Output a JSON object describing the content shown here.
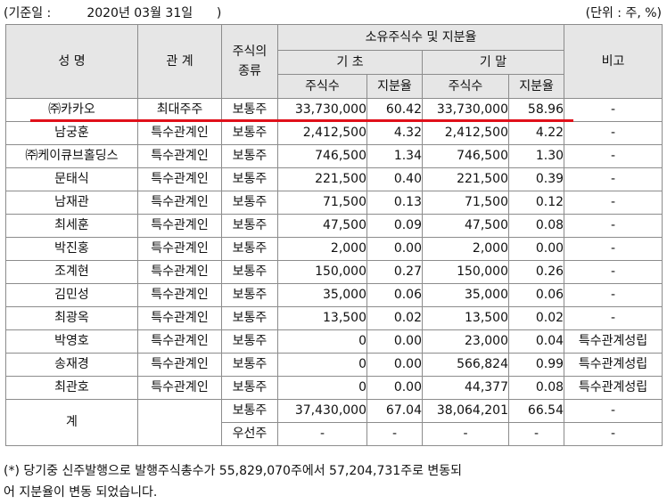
{
  "header": {
    "base_date": "(기준일 :         2020년 03월 31일      )",
    "unit": "(단위 : 주, %)"
  },
  "table": {
    "col_name": "성 명",
    "col_relation": "관 계",
    "col_stock_type": "주식의\n종류",
    "col_ownership": "소유주식수 및 지분율",
    "col_begin": "기 초",
    "col_end": "기 말",
    "col_note": "비고",
    "col_shares_begin": "주식수",
    "col_ratio_begin": "지분율",
    "col_shares_end": "주식수",
    "col_ratio_end": "지분율",
    "rows": [
      {
        "name": "㈜카카오",
        "relation": "최대주주",
        "type": "보통주",
        "shares_begin": "33,730,000",
        "ratio_begin": "60.42",
        "shares_end": "33,730,000",
        "ratio_end": "58.96",
        "note": "-"
      },
      {
        "name": "남궁훈",
        "relation": "특수관계인",
        "type": "보통주",
        "shares_begin": "2,412,500",
        "ratio_begin": "4.32",
        "shares_end": "2,412,500",
        "ratio_end": "4.22",
        "note": "-"
      },
      {
        "name": "㈜케이큐브홀딩스",
        "relation": "특수관계인",
        "type": "보통주",
        "shares_begin": "746,500",
        "ratio_begin": "1.34",
        "shares_end": "746,500",
        "ratio_end": "1.30",
        "note": "-"
      },
      {
        "name": "문태식",
        "relation": "특수관계인",
        "type": "보통주",
        "shares_begin": "221,500",
        "ratio_begin": "0.40",
        "shares_end": "221,500",
        "ratio_end": "0.39",
        "note": "-"
      },
      {
        "name": "남재관",
        "relation": "특수관계인",
        "type": "보통주",
        "shares_begin": "71,500",
        "ratio_begin": "0.13",
        "shares_end": "71,500",
        "ratio_end": "0.12",
        "note": "-"
      },
      {
        "name": "최세훈",
        "relation": "특수관계인",
        "type": "보통주",
        "shares_begin": "47,500",
        "ratio_begin": "0.09",
        "shares_end": "47,500",
        "ratio_end": "0.08",
        "note": "-"
      },
      {
        "name": "박진홍",
        "relation": "특수관계인",
        "type": "보통주",
        "shares_begin": "2,000",
        "ratio_begin": "0.00",
        "shares_end": "2,000",
        "ratio_end": "0.00",
        "note": "-"
      },
      {
        "name": "조계현",
        "relation": "특수관계인",
        "type": "보통주",
        "shares_begin": "150,000",
        "ratio_begin": "0.27",
        "shares_end": "150,000",
        "ratio_end": "0.26",
        "note": "-"
      },
      {
        "name": "김민성",
        "relation": "특수관계인",
        "type": "보통주",
        "shares_begin": "35,000",
        "ratio_begin": "0.06",
        "shares_end": "35,000",
        "ratio_end": "0.06",
        "note": "-"
      },
      {
        "name": "최광옥",
        "relation": "특수관계인",
        "type": "보통주",
        "shares_begin": "13,500",
        "ratio_begin": "0.02",
        "shares_end": "13,500",
        "ratio_end": "0.02",
        "note": "-"
      },
      {
        "name": "박영호",
        "relation": "특수관계인",
        "type": "보통주",
        "shares_begin": "0",
        "ratio_begin": "0.00",
        "shares_end": "23,000",
        "ratio_end": "0.04",
        "note": "특수관계성립"
      },
      {
        "name": "송재경",
        "relation": "특수관계인",
        "type": "보통주",
        "shares_begin": "0",
        "ratio_begin": "0.00",
        "shares_end": "566,824",
        "ratio_end": "0.99",
        "note": "특수관계성립"
      },
      {
        "name": "최관호",
        "relation": "특수관계인",
        "type": "보통주",
        "shares_begin": "0",
        "ratio_begin": "0.00",
        "shares_end": "44,377",
        "ratio_end": "0.08",
        "note": "특수관계성립"
      }
    ],
    "total": {
      "label": "계",
      "common_type": "보통주",
      "common_shares_begin": "37,430,000",
      "common_ratio_begin": "67.04",
      "common_shares_end": "38,064,201",
      "common_ratio_end": "66.54",
      "common_note": "-",
      "preferred_type": "우선주",
      "preferred_shares_begin": "-",
      "preferred_ratio_begin": "-",
      "preferred_shares_end": "-",
      "preferred_ratio_end": "-",
      "preferred_note": "-"
    }
  },
  "annotation_color": "#e0101a",
  "footnote": "(*) 당기중 신주발행으로 발행주식총수가 55,829,070주에서 57,204,731주로 변동되\n어 지분율이 변동 되었습니다."
}
